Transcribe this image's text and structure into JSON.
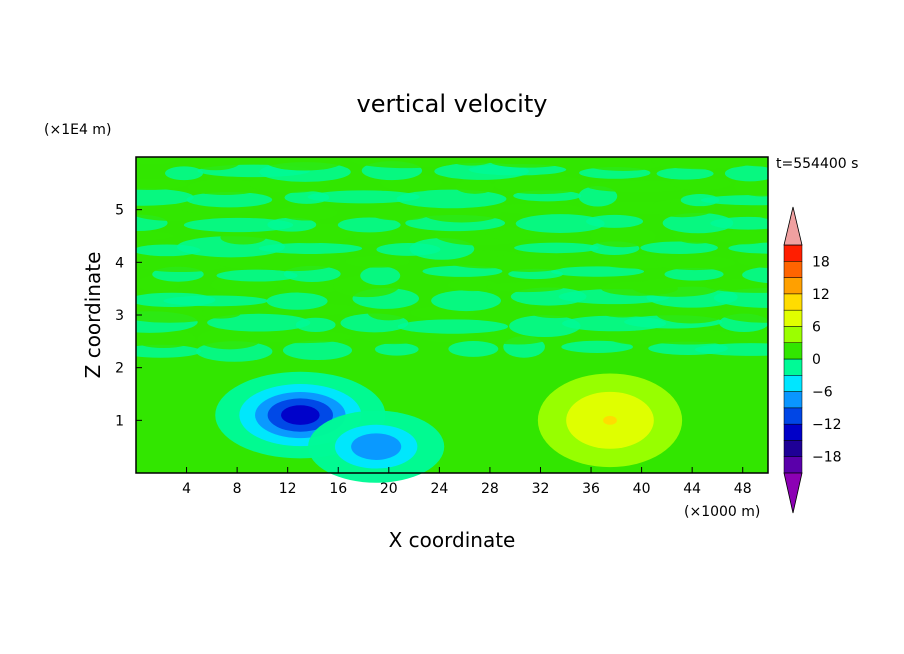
{
  "chart_data": {
    "type": "heatmap",
    "title": "vertical velocity",
    "time_label": "t=554400 s",
    "xlabel": "X coordinate",
    "ylabel": "Z coordinate",
    "x_unit": "(×1000 m)",
    "y_unit": "(×1E4 m)",
    "xlim": [
      0,
      50
    ],
    "ylim": [
      0,
      6
    ],
    "x_ticks": [
      4,
      8,
      12,
      16,
      20,
      24,
      28,
      32,
      36,
      40,
      44,
      48
    ],
    "y_ticks": [
      1,
      2,
      3,
      4,
      5
    ],
    "colorbar": {
      "levels": [
        -21,
        -18,
        -15,
        -12,
        -9,
        -6,
        -3,
        0,
        3,
        6,
        9,
        12,
        15,
        18,
        21
      ],
      "tick_labels": [
        "18",
        "12",
        "6",
        "0",
        "−6",
        "−12",
        "−18"
      ],
      "tick_values": [
        18,
        12,
        6,
        0,
        -6,
        -12,
        -18
      ],
      "colors": [
        "#8c00b4",
        "#5a00aa",
        "#1e0096",
        "#0000c8",
        "#0046e6",
        "#0a96ff",
        "#00e6ff",
        "#00fa96",
        "#32e600",
        "#9bff00",
        "#e1ff00",
        "#ffdc00",
        "#ffa000",
        "#ff6400",
        "#ff1e00",
        "#f0a0a0"
      ]
    },
    "features": [
      {
        "kind": "downdraft",
        "x": 13,
        "z": 1.1,
        "peak": -14,
        "sx": 5.0,
        "sz": 0.42
      },
      {
        "kind": "downdraft",
        "x": 19,
        "z": 0.5,
        "peak": -9,
        "sx": 4.0,
        "sz": 0.35
      },
      {
        "kind": "updraft",
        "x": 37.5,
        "z": 1.0,
        "peak": 9,
        "sx": 7.0,
        "sz": 0.75
      }
    ]
  }
}
